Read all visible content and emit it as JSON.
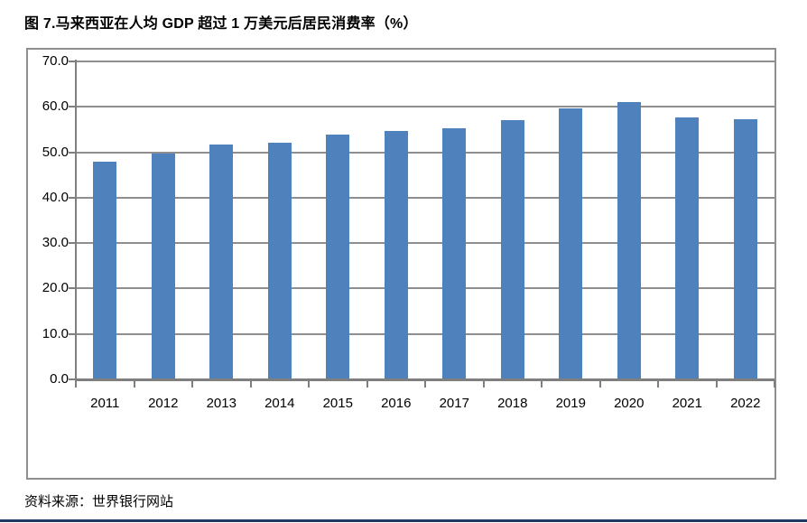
{
  "header": {
    "title": "图 7.马来西亚在人均 GDP 超过 1 万美元后居民消费率（%）"
  },
  "footer": {
    "source": "资料来源：世界银行网站"
  },
  "colors": {
    "bar": "#4F81BD",
    "gridline": "#8E8E8E",
    "axis": "#7F7F7F",
    "chart_border": "#8F8F8F",
    "bottom_rule": "#1F3864",
    "text": "#000000"
  },
  "chart_data": {
    "type": "bar",
    "title": "图 7.马来西亚在人均 GDP 超过 1 万美元后居民消费率（%）",
    "xlabel": "",
    "ylabel": "",
    "categories": [
      "2011",
      "2012",
      "2013",
      "2014",
      "2015",
      "2016",
      "2017",
      "2018",
      "2019",
      "2020",
      "2021",
      "2022"
    ],
    "values": [
      47.9,
      49.8,
      51.7,
      52.2,
      53.8,
      54.6,
      55.2,
      57.1,
      59.6,
      61.0,
      57.7,
      57.3
    ],
    "ylim": [
      0,
      70
    ],
    "yticks": [
      {
        "v": 0,
        "label": "0.0"
      },
      {
        "v": 10,
        "label": "10.0"
      },
      {
        "v": 20,
        "label": "20.0"
      },
      {
        "v": 30,
        "label": "30.0"
      },
      {
        "v": 40,
        "label": "40.0"
      },
      {
        "v": 50,
        "label": "50.0"
      },
      {
        "v": 60,
        "label": "60.0"
      },
      {
        "v": 70,
        "label": "70.0"
      }
    ],
    "grid": true,
    "legend": "none",
    "source": "资料来源：世界银行网站"
  }
}
